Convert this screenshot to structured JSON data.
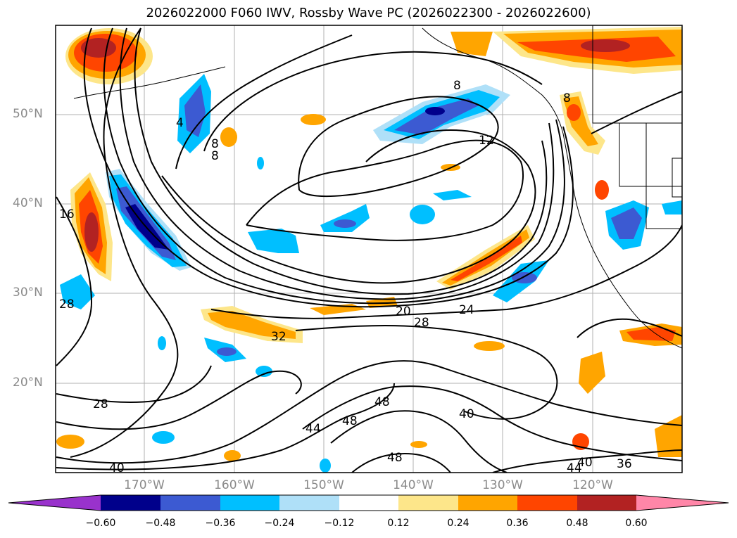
{
  "title": "2026022000 F060 IWV, Rossby Wave PC (2026022300 - 2026022600)",
  "lat_labels": [
    "50°N",
    "40°N",
    "30°N",
    "20°N"
  ],
  "lon_labels": [
    "170°W",
    "160°W",
    "150°W",
    "140°W",
    "130°W",
    "120°W"
  ],
  "contour_labels": [
    "8",
    "8",
    "12",
    "8",
    "4",
    "16",
    "28",
    "20",
    "24",
    "28",
    "32",
    "28",
    "48",
    "48",
    "44",
    "40",
    "48",
    "40",
    "44",
    "36",
    "40",
    "8"
  ],
  "colorbar": {
    "colors": [
      "#9932cc",
      "#00008b",
      "#3c5ad2",
      "#00bfff",
      "#afe0f8",
      "#ffffff",
      "#fde68a",
      "#ffa500",
      "#ff4500",
      "#b22222",
      "#ff86a8"
    ],
    "ticks": [
      "−0.60",
      "−0.48",
      "−0.36",
      "−0.24",
      "−0.12",
      "0.12",
      "0.24",
      "0.36",
      "0.48",
      "0.60"
    ]
  }
}
